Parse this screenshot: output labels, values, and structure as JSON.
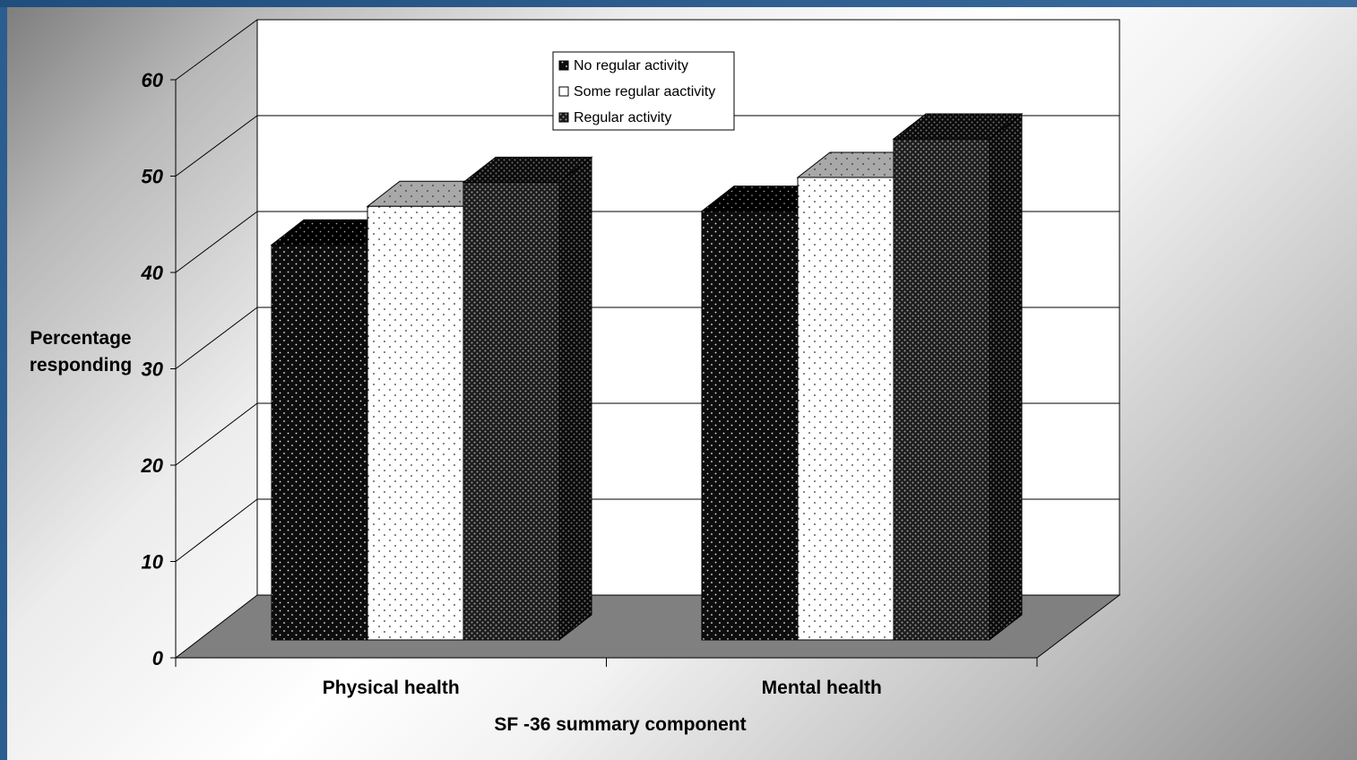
{
  "chart_data": {
    "type": "bar",
    "categories": [
      "Physical health",
      "Mental health"
    ],
    "series": [
      {
        "name": "No regular activity",
        "values": [
          41,
          44.5
        ]
      },
      {
        "name": "Some regular aactivity",
        "values": [
          45,
          48
        ]
      },
      {
        "name": "Regular activity",
        "values": [
          47.5,
          52
        ]
      }
    ],
    "xlabel": "SF -36 summary component",
    "ylabel": [
      "Percentage",
      "responding"
    ],
    "ylim": [
      0,
      60
    ],
    "yticks": [
      0,
      10,
      20,
      30,
      40,
      50,
      60
    ],
    "grid": true,
    "legend_position": "top-center",
    "style": "3d-clustered",
    "colors": {
      "no_regular_face": "#111111",
      "some_regular_face": "#ffffff",
      "regular_face": "#3a3a3a",
      "floor": "#808080",
      "wall": "#ffffff"
    }
  }
}
